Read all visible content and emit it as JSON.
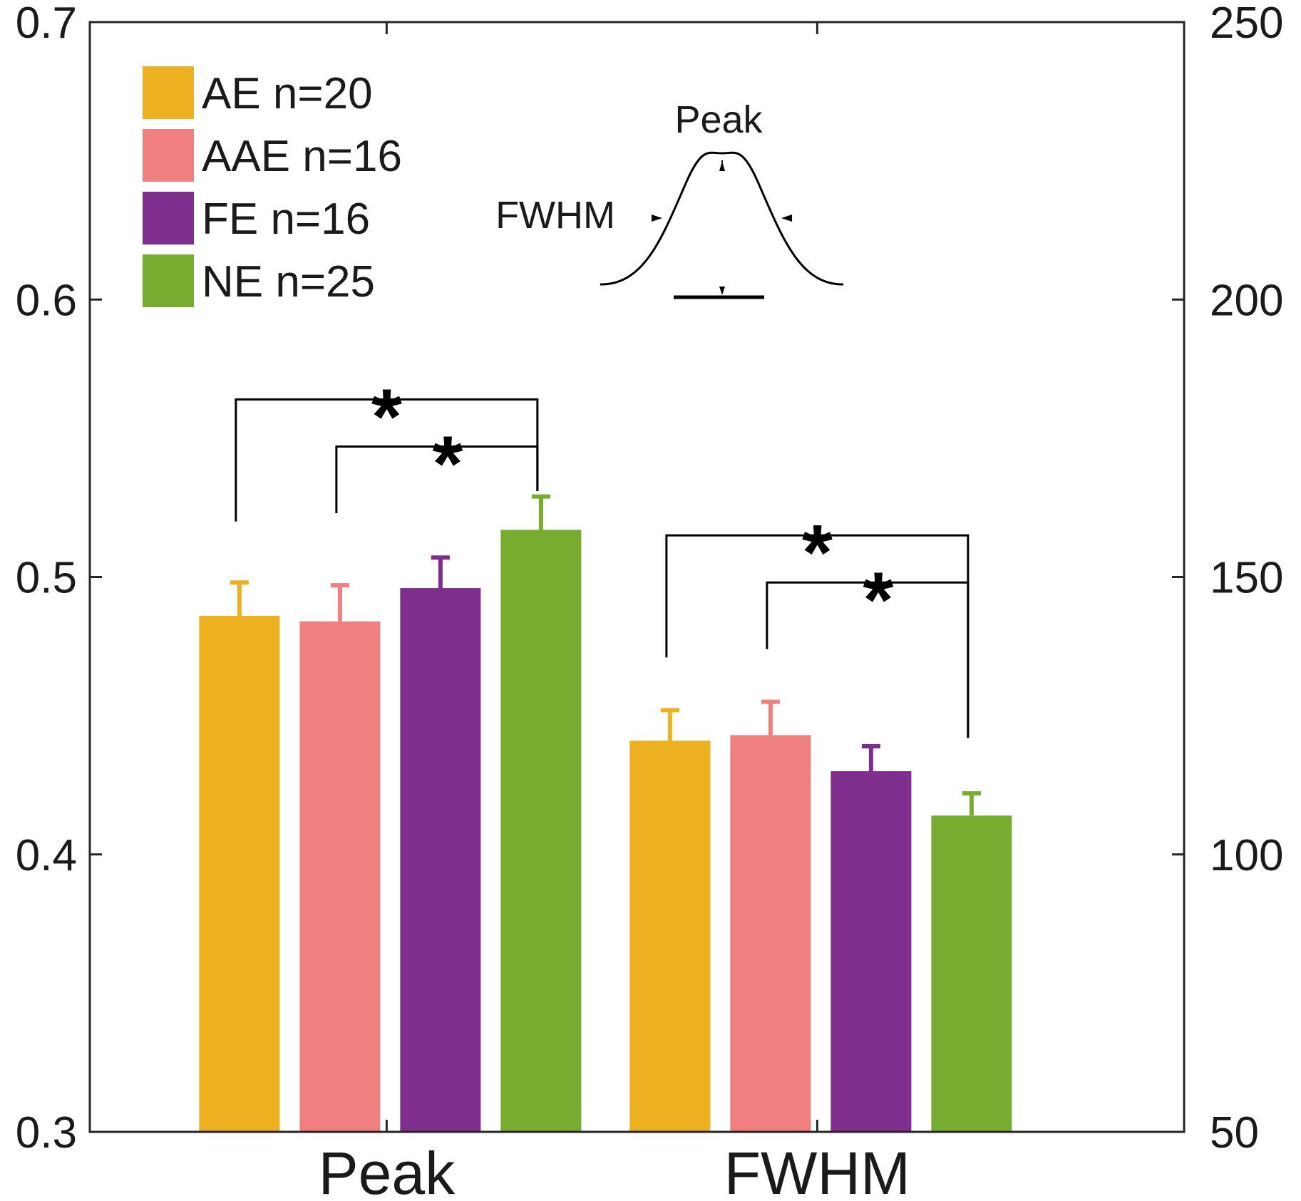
{
  "chart_data": {
    "type": "bar",
    "title": "",
    "xlabel": "",
    "ylabel": "",
    "categories": [
      "Peak",
      "FWHM"
    ],
    "axis_left": {
      "ylim": [
        0.3,
        0.7
      ],
      "ticks": [
        "0.3",
        "0.4",
        "0.5",
        "0.6",
        "0.7"
      ],
      "tick_values": [
        0.3,
        0.4,
        0.5,
        0.6,
        0.7
      ],
      "applies_to": "Peak"
    },
    "axis_right": {
      "ylim": [
        50,
        250
      ],
      "ticks": [
        "50",
        "100",
        "150",
        "200",
        "250"
      ],
      "tick_values": [
        50,
        100,
        150,
        200,
        250
      ],
      "applies_to": "FWHM"
    },
    "series": [
      {
        "name": "AE n=20",
        "color": "#ECB021",
        "values": [
          0.486,
          120.5
        ],
        "errors": [
          0.012,
          5.5
        ]
      },
      {
        "name": "AAE n=16",
        "color": "#F08080",
        "values": [
          0.484,
          121.5
        ],
        "errors": [
          0.013,
          6.0
        ]
      },
      {
        "name": "FE n=16",
        "color": "#7E2F8E",
        "values": [
          0.496,
          115.0
        ],
        "errors": [
          0.011,
          4.5
        ]
      },
      {
        "name": "NE n=25",
        "color": "#77AC30",
        "values": [
          0.517,
          107.0
        ],
        "errors": [
          0.012,
          4.0
        ]
      }
    ],
    "significance": [
      {
        "category": "Peak",
        "from": "AE n=20",
        "to": "NE n=25",
        "label": "*",
        "level": 0.564,
        "stem_bottom": [
          0.52,
          0.531
        ]
      },
      {
        "category": "Peak",
        "from": "AAE n=16",
        "to": "NE n=25",
        "label": "*",
        "level": 0.547,
        "stem_bottom": [
          0.523,
          0.531
        ]
      },
      {
        "category": "FWHM",
        "from": "AE n=20",
        "to": "NE n=25",
        "label": "*",
        "level": 157.5,
        "stem_bottom": [
          135.5,
          121.0
        ]
      },
      {
        "category": "FWHM",
        "from": "AAE n=16",
        "to": "NE n=25",
        "label": "*",
        "level": 149.0,
        "stem_bottom": [
          137.0,
          121.0
        ]
      }
    ],
    "legend": {
      "position": "top-left",
      "entries": [
        "AE n=20",
        "AAE n=16",
        "FE n=16",
        "NE n=25"
      ]
    },
    "inset": {
      "peak_label": "Peak",
      "fwhm_label": "FWHM"
    },
    "grid": false
  }
}
